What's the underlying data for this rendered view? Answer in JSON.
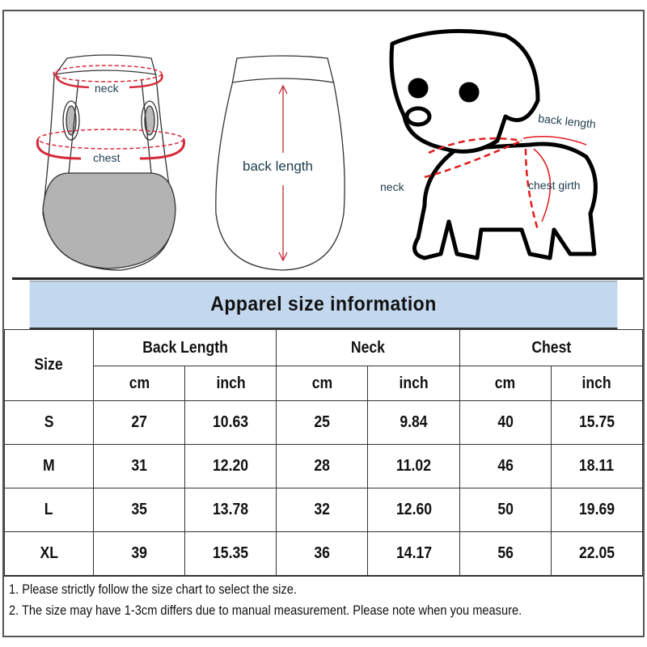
{
  "illustration": {
    "vest_labels": {
      "neck": "neck",
      "chest": "chest"
    },
    "back_label": "back length",
    "dog_labels": {
      "back_length": "back length",
      "neck": "neck",
      "chest_girth": "chest girth"
    },
    "accent_color": "#d62a3a"
  },
  "title": "Apparel size information",
  "table": {
    "size_header": "Size",
    "groups": [
      "Back Length",
      "Neck",
      "Chest"
    ],
    "units": [
      "cm",
      "inch",
      "cm",
      "inch",
      "cm",
      "inch"
    ],
    "rows": [
      {
        "size": "S",
        "values": [
          "27",
          "10.63",
          "25",
          "9.84",
          "40",
          "15.75"
        ]
      },
      {
        "size": "M",
        "values": [
          "31",
          "12.20",
          "28",
          "11.02",
          "46",
          "18.11"
        ]
      },
      {
        "size": "L",
        "values": [
          "35",
          "13.78",
          "32",
          "12.60",
          "50",
          "19.69"
        ]
      },
      {
        "size": "XL",
        "values": [
          "39",
          "15.35",
          "36",
          "14.17",
          "56",
          "22.05"
        ]
      }
    ]
  },
  "notes": [
    "1. Please strictly follow the size chart  to select the size.",
    "2. The size may have 1-3cm differs due to manual measurement. Please note when you measure."
  ]
}
